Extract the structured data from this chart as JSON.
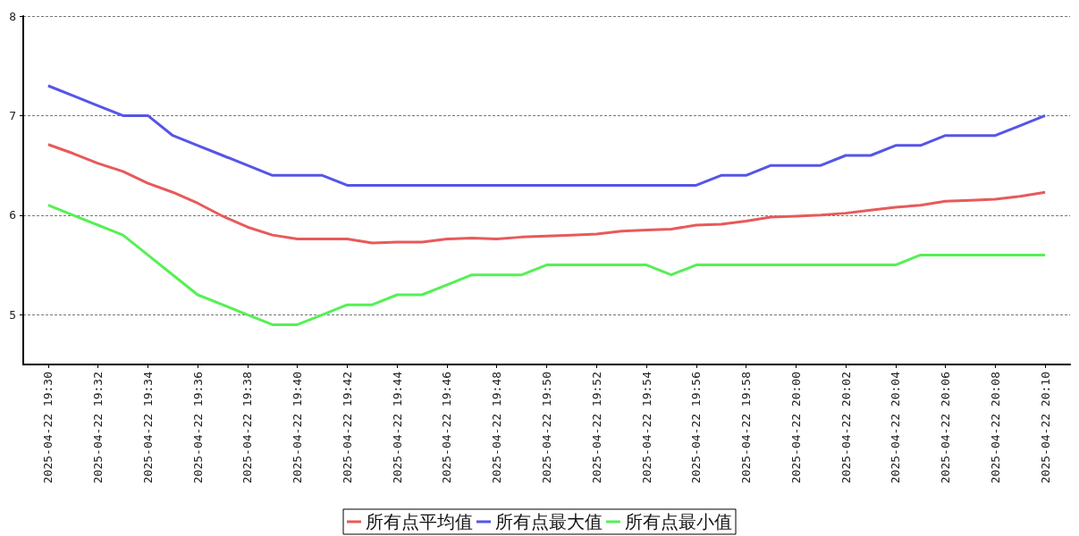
{
  "chart_data": {
    "type": "line",
    "x": [
      "2025-04-22T19:30",
      "2025-04-22T19:31",
      "2025-04-22T19:32",
      "2025-04-22T19:33",
      "2025-04-22T19:34",
      "2025-04-22T19:35",
      "2025-04-22T19:36",
      "2025-04-22T19:37",
      "2025-04-22T19:38",
      "2025-04-22T19:39",
      "2025-04-22T19:40",
      "2025-04-22T19:41",
      "2025-04-22T19:42",
      "2025-04-22T19:43",
      "2025-04-22T19:44",
      "2025-04-22T19:45",
      "2025-04-22T19:46",
      "2025-04-22T19:47",
      "2025-04-22T19:48",
      "2025-04-22T19:49",
      "2025-04-22T19:50",
      "2025-04-22T19:51",
      "2025-04-22T19:52",
      "2025-04-22T19:53",
      "2025-04-22T19:54",
      "2025-04-22T19:55",
      "2025-04-22T19:56",
      "2025-04-22T19:57",
      "2025-04-22T19:58",
      "2025-04-22T19:59",
      "2025-04-22T20:00",
      "2025-04-22T20:01",
      "2025-04-22T20:02",
      "2025-04-22T20:03",
      "2025-04-22T20:04",
      "2025-04-22T20:05",
      "2025-04-22T20:06",
      "2025-04-22T20:07",
      "2025-04-22T20:08",
      "2025-04-22T20:09",
      "2025-04-22T20:10"
    ],
    "series": [
      {
        "name": "所有点平均值",
        "color": "#e85a5a",
        "values": [
          6.71,
          6.62,
          6.52,
          6.44,
          6.32,
          6.23,
          6.12,
          5.99,
          5.88,
          5.8,
          5.76,
          5.76,
          5.76,
          5.72,
          5.73,
          5.73,
          5.76,
          5.77,
          5.76,
          5.78,
          5.79,
          5.8,
          5.81,
          5.84,
          5.85,
          5.86,
          5.9,
          5.91,
          5.94,
          5.98,
          5.99,
          6.0,
          6.02,
          6.05,
          6.08,
          6.1,
          6.14,
          6.15,
          6.16,
          6.19,
          6.23
        ]
      },
      {
        "name": "所有点最大值",
        "color": "#5555e8",
        "values": [
          7.3,
          7.2,
          7.1,
          7.0,
          7.0,
          6.8,
          6.7,
          6.6,
          6.5,
          6.4,
          6.4,
          6.4,
          6.3,
          6.3,
          6.3,
          6.3,
          6.3,
          6.3,
          6.3,
          6.3,
          6.3,
          6.3,
          6.3,
          6.3,
          6.3,
          6.3,
          6.3,
          6.4,
          6.4,
          6.5,
          6.5,
          6.5,
          6.6,
          6.6,
          6.7,
          6.7,
          6.8,
          6.8,
          6.8,
          6.9,
          7.0
        ]
      },
      {
        "name": "所有点最小值",
        "color": "#55f055",
        "values": [
          6.1,
          6.0,
          5.9,
          5.8,
          5.6,
          5.4,
          5.2,
          5.1,
          5.0,
          4.9,
          4.9,
          5.0,
          5.1,
          5.1,
          5.2,
          5.2,
          5.3,
          5.4,
          5.4,
          5.4,
          5.5,
          5.5,
          5.5,
          5.5,
          5.5,
          5.4,
          5.5,
          5.5,
          5.5,
          5.5,
          5.5,
          5.5,
          5.5,
          5.5,
          5.5,
          5.6,
          5.6,
          5.6,
          5.6,
          5.6,
          5.6
        ]
      }
    ],
    "xlim": [
      "2025-04-22T19:29",
      "2025-04-22T20:11"
    ],
    "xticks": [
      {
        "value": "2025-04-22T19:30",
        "label": "2025-04-22 19:30"
      },
      {
        "value": "2025-04-22T19:32",
        "label": "2025-04-22 19:32"
      },
      {
        "value": "2025-04-22T19:34",
        "label": "2025-04-22 19:34"
      },
      {
        "value": "2025-04-22T19:36",
        "label": "2025-04-22 19:36"
      },
      {
        "value": "2025-04-22T19:38",
        "label": "2025-04-22 19:38"
      },
      {
        "value": "2025-04-22T19:40",
        "label": "2025-04-22 19:40"
      },
      {
        "value": "2025-04-22T19:42",
        "label": "2025-04-22 19:42"
      },
      {
        "value": "2025-04-22T19:44",
        "label": "2025-04-22 19:44"
      },
      {
        "value": "2025-04-22T19:46",
        "label": "2025-04-22 19:46"
      },
      {
        "value": "2025-04-22T19:48",
        "label": "2025-04-22 19:48"
      },
      {
        "value": "2025-04-22T19:50",
        "label": "2025-04-22 19:50"
      },
      {
        "value": "2025-04-22T19:52",
        "label": "2025-04-22 19:52"
      },
      {
        "value": "2025-04-22T19:54",
        "label": "2025-04-22 19:54"
      },
      {
        "value": "2025-04-22T19:56",
        "label": "2025-04-22 19:56"
      },
      {
        "value": "2025-04-22T19:58",
        "label": "2025-04-22 19:58"
      },
      {
        "value": "2025-04-22T20:00",
        "label": "2025-04-22 20:00"
      },
      {
        "value": "2025-04-22T20:02",
        "label": "2025-04-22 20:02"
      },
      {
        "value": "2025-04-22T20:04",
        "label": "2025-04-22 20:04"
      },
      {
        "value": "2025-04-22T20:06",
        "label": "2025-04-22 20:06"
      },
      {
        "value": "2025-04-22T20:08",
        "label": "2025-04-22 20:08"
      },
      {
        "value": "2025-04-22T20:10",
        "label": "2025-04-22 20:10"
      }
    ],
    "ylim": [
      4.5,
      8
    ],
    "yticks": [
      5,
      6,
      7,
      8
    ],
    "grid": "y",
    "legend": "bottom",
    "marker": "none",
    "line_style": "solid"
  }
}
